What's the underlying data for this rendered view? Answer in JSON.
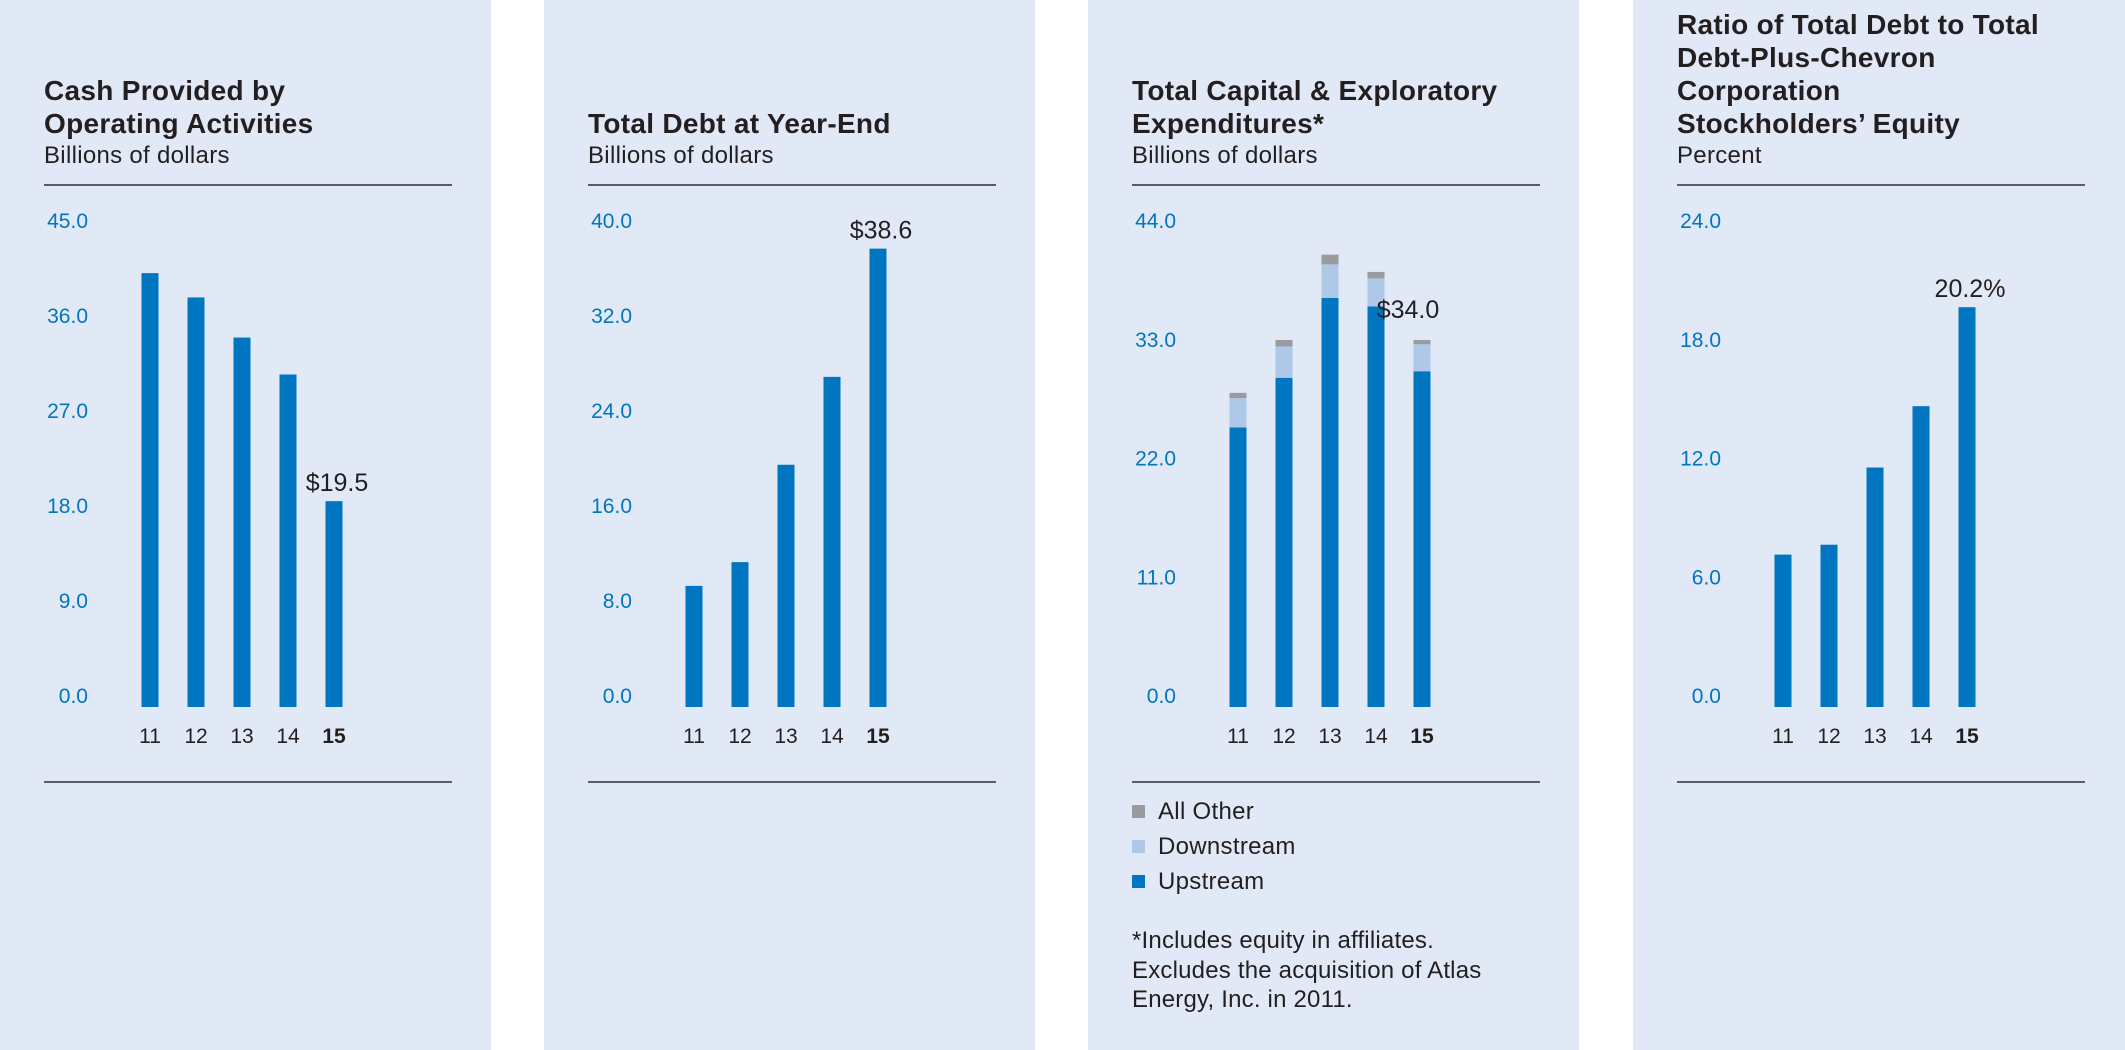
{
  "colors": {
    "panel_bg": "#e1e9f6",
    "bar": "#0075c0",
    "upstream": "#0075c0",
    "downstream": "#aec9e8",
    "all_other": "#999b9e",
    "tick_label": "#0075c0",
    "text": "#231f20"
  },
  "chart_data": [
    {
      "type": "bar",
      "title": "Cash Provided by Operating Activities",
      "title_lines": [
        "Cash Provided by",
        "Operating Activities"
      ],
      "subtitle": "Billions of dollars",
      "xlabel": "",
      "ylabel": "Billions of dollars",
      "categories": [
        "11",
        "12",
        "13",
        "14",
        "15"
      ],
      "values": [
        41.1,
        38.8,
        35.0,
        31.5,
        19.5
      ],
      "ylim": [
        0,
        45
      ],
      "yticks": [
        "0.0",
        "9.0",
        "18.0",
        "27.0",
        "36.0",
        "45.0"
      ],
      "ytick_values": [
        0,
        9,
        18,
        27,
        36,
        45
      ],
      "highlight_label": "$19.5",
      "highlight_index": 4,
      "bold_category": "15",
      "grid": false
    },
    {
      "type": "bar",
      "title": "Total Debt at Year-End",
      "title_lines": [
        "Total Debt at Year-End"
      ],
      "subtitle": "Billions of dollars",
      "xlabel": "",
      "ylabel": "Billions of dollars",
      "categories": [
        "11",
        "12",
        "13",
        "14",
        "15"
      ],
      "values": [
        10.2,
        12.2,
        20.4,
        27.8,
        38.6
      ],
      "ylim": [
        0,
        40
      ],
      "yticks": [
        "0.0",
        "8.0",
        "16.0",
        "24.0",
        "32.0",
        "40.0"
      ],
      "ytick_values": [
        0,
        8,
        16,
        24,
        32,
        40
      ],
      "highlight_label": "$38.6",
      "highlight_index": 4,
      "bold_category": "15",
      "grid": false
    },
    {
      "type": "bar",
      "stacked": true,
      "title": "Total Capital & Exploratory Expenditures*",
      "title_lines": [
        "Total Capital & Exploratory",
        "Expenditures*"
      ],
      "subtitle": "Billions of dollars",
      "xlabel": "",
      "ylabel": "Billions of dollars",
      "categories": [
        "11",
        "12",
        "13",
        "14",
        "15"
      ],
      "series": [
        {
          "name": "Upstream",
          "color": "#0075c0",
          "values": [
            25.9,
            30.5,
            37.9,
            37.1,
            31.1
          ]
        },
        {
          "name": "Downstream",
          "color": "#aec9e8",
          "values": [
            2.7,
            2.9,
            3.1,
            2.6,
            2.5
          ]
        },
        {
          "name": "All Other",
          "color": "#999b9e",
          "values": [
            0.5,
            0.6,
            0.9,
            0.6,
            0.4
          ]
        }
      ],
      "ylim": [
        0,
        44
      ],
      "yticks": [
        "0.0",
        "11.0",
        "22.0",
        "33.0",
        "44.0"
      ],
      "ytick_values": [
        0,
        11,
        22,
        33,
        44
      ],
      "highlight_label": "$34.0",
      "highlight_index": 4,
      "bold_category": "15",
      "legend": {
        "placement": "bottom",
        "items": [
          {
            "label": "All Other",
            "color": "#999b9e"
          },
          {
            "label": "Downstream",
            "color": "#aec9e8"
          },
          {
            "label": "Upstream",
            "color": "#0075c0"
          }
        ]
      },
      "footnote_lines": [
        "*Includes equity in affiliates.",
        "Excludes the acquisition of Atlas",
        "Energy, Inc. in 2011."
      ],
      "grid": false
    },
    {
      "type": "bar",
      "title": "Ratio of Total Debt to Total Debt-Plus-Chevron Corporation Stockholders’ Equity",
      "title_lines": [
        "Ratio of Total Debt to Total",
        "Debt-Plus-Chevron Corporation",
        "Stockholders’ Equity"
      ],
      "subtitle": "Percent",
      "xlabel": "",
      "ylabel": "Percent",
      "categories": [
        "11",
        "12",
        "13",
        "14",
        "15"
      ],
      "values": [
        7.7,
        8.2,
        12.1,
        15.2,
        20.2
      ],
      "ylim": [
        0,
        24
      ],
      "yticks": [
        "0.0",
        "6.0",
        "12.0",
        "18.0",
        "24.0"
      ],
      "ytick_values": [
        0,
        6,
        12,
        18,
        24
      ],
      "highlight_label": "20.2%",
      "highlight_index": 4,
      "bold_category": "15",
      "grid": false
    }
  ]
}
